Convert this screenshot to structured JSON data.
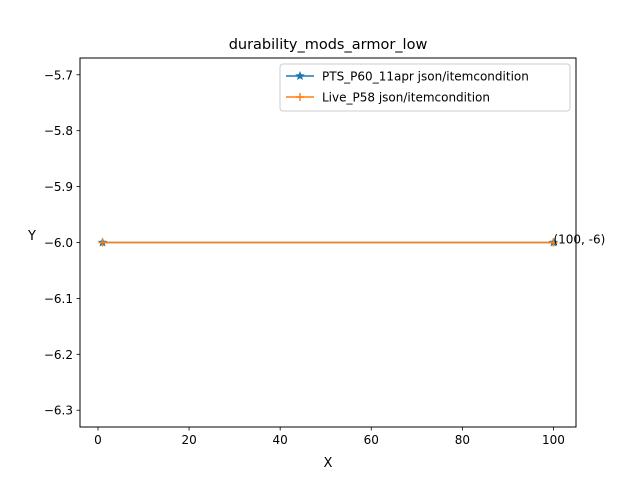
{
  "chart_data": {
    "type": "line",
    "title": "durability_mods_armor_low",
    "xlabel": "X",
    "ylabel": "Y",
    "xlim": [
      -3.95,
      104.95
    ],
    "ylim": [
      -6.33,
      -5.67
    ],
    "xticks": [
      0,
      20,
      40,
      60,
      80,
      100
    ],
    "xtick_labels": [
      "0",
      "20",
      "40",
      "60",
      "80",
      "100"
    ],
    "yticks": [
      -5.7,
      -5.8,
      -5.9,
      -6.0,
      -6.1,
      -6.2,
      -6.3
    ],
    "ytick_labels": [
      "−5.7",
      "−5.8",
      "−5.9",
      "−6.0",
      "−6.1",
      "−6.2",
      "−6.3"
    ],
    "grid": false,
    "legend_position": "top-right",
    "series": [
      {
        "name": "PTS_P60_11apr json/itemcondition",
        "color": "#1f77b4",
        "marker": "star",
        "x": [
          1,
          100
        ],
        "y": [
          -6,
          -6
        ]
      },
      {
        "name": "Live_P58 json/itemcondition",
        "color": "#ff7f0e",
        "marker": "plus",
        "x": [
          1,
          100
        ],
        "y": [
          -6,
          -6
        ]
      }
    ],
    "annotations": [
      {
        "text": "(100, -6)",
        "x": 100,
        "y": -6
      }
    ]
  }
}
